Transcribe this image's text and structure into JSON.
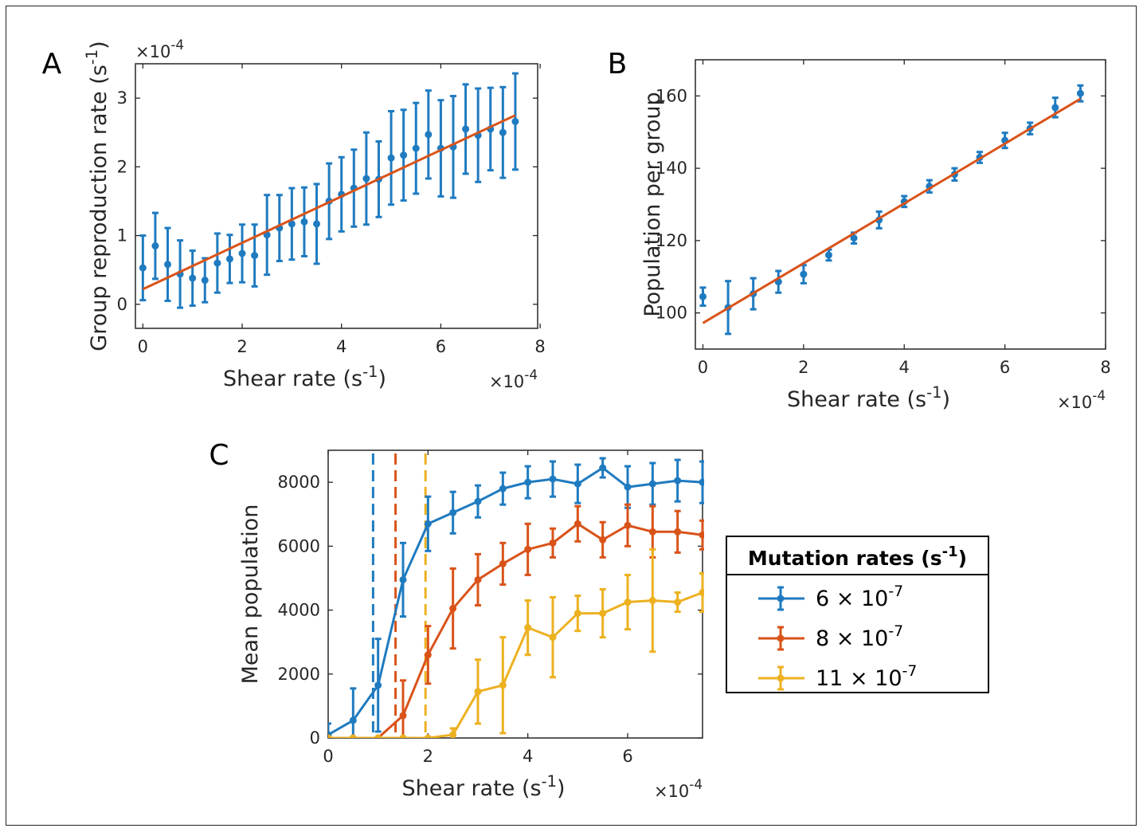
{
  "colors": {
    "blue": "#1f7bc0",
    "orange": "#d95319",
    "yellow": "#edb120",
    "axis": "#262626"
  },
  "chart_data": [
    {
      "panel": "A",
      "type": "scatter",
      "xlabel": "Shear rate (s",
      "xlabel_sup": "-1",
      "xlabel_close": ")",
      "ylabel": "Group reproduction rate (s",
      "ylabel_sup": "-1",
      "ylabel_close": ")",
      "x_multiplier": "×10",
      "x_multiplier_exp": "-4",
      "y_multiplier": "×10",
      "y_multiplier_exp": "-4",
      "xlim": [
        -0.15,
        7.95
      ],
      "ylim": [
        -0.35,
        3.5
      ],
      "xticks": [
        0,
        2,
        4,
        6,
        8
      ],
      "yticks": [
        0,
        1,
        2,
        3
      ],
      "grid": false,
      "series": [
        {
          "marker_color": "#1f7bc0",
          "x": [
            0,
            0.25,
            0.5,
            0.75,
            1.0,
            1.25,
            1.5,
            1.75,
            2.0,
            2.25,
            2.5,
            2.75,
            3.0,
            3.25,
            3.5,
            3.75,
            4.0,
            4.25,
            4.5,
            4.75,
            5.0,
            5.25,
            5.5,
            5.75,
            6.0,
            6.25,
            6.5,
            6.75,
            7.0,
            7.25,
            7.5
          ],
          "y": [
            0.53,
            0.85,
            0.58,
            0.44,
            0.38,
            0.35,
            0.6,
            0.66,
            0.74,
            0.71,
            1.01,
            1.11,
            1.17,
            1.2,
            1.17,
            1.5,
            1.6,
            1.69,
            1.83,
            1.82,
            2.13,
            2.17,
            2.27,
            2.47,
            2.27,
            2.29,
            2.55,
            2.46,
            2.55,
            2.5,
            2.66
          ],
          "err": [
            0.47,
            0.48,
            0.53,
            0.49,
            0.4,
            0.32,
            0.43,
            0.35,
            0.42,
            0.45,
            0.58,
            0.48,
            0.52,
            0.5,
            0.58,
            0.55,
            0.54,
            0.56,
            0.67,
            0.55,
            0.68,
            0.66,
            0.66,
            0.64,
            0.7,
            0.74,
            0.65,
            0.68,
            0.6,
            0.66,
            0.7
          ]
        }
      ],
      "fit_line": {
        "color": "#d95319",
        "x": [
          0,
          7.5
        ],
        "y": [
          0.22,
          2.75
        ]
      }
    },
    {
      "panel": "B",
      "type": "scatter",
      "xlabel": "Shear rate (s",
      "xlabel_sup": "-1",
      "xlabel_close": ")",
      "ylabel": "Population per group",
      "x_multiplier": "×10",
      "x_multiplier_exp": "-4",
      "xlim": [
        -0.15,
        8
      ],
      "ylim": [
        90,
        170
      ],
      "xticks": [
        0,
        2,
        4,
        6,
        8
      ],
      "yticks": [
        100,
        120,
        140,
        160
      ],
      "grid": false,
      "series": [
        {
          "marker_color": "#1f7bc0",
          "x": [
            0,
            0.5,
            1.0,
            1.5,
            2.0,
            2.5,
            3.0,
            3.5,
            4.0,
            4.5,
            5.0,
            5.5,
            6.0,
            6.5,
            7.0,
            7.5
          ],
          "y": [
            104.5,
            101.5,
            105.3,
            108.6,
            110.7,
            116.0,
            120.7,
            125.7,
            130.8,
            135.0,
            138.3,
            143.0,
            147.7,
            151.0,
            156.8,
            160.7
          ],
          "err": [
            2.5,
            7.3,
            4.3,
            3.0,
            2.5,
            1.5,
            1.5,
            2.3,
            1.5,
            1.7,
            1.7,
            1.5,
            2.1,
            1.6,
            2.7,
            2.2
          ]
        }
      ],
      "fit_line": {
        "color": "#d95319",
        "x": [
          0,
          7.5
        ],
        "y": [
          97.2,
          159.2
        ]
      }
    },
    {
      "panel": "C",
      "type": "line",
      "xlabel": "Shear rate (s",
      "xlabel_sup": "-1",
      "xlabel_close": ")",
      "ylabel": "Mean population",
      "x_multiplier": "×10",
      "x_multiplier_exp": "-4",
      "xlim": [
        0,
        7.5
      ],
      "ylim": [
        0,
        9000
      ],
      "xticks": [
        0,
        2,
        4,
        6
      ],
      "yticks": [
        0,
        2000,
        4000,
        6000,
        8000
      ],
      "grid": false,
      "legend": {
        "title": "Mutation rates (s",
        "title_sup": "-1",
        "title_close": ")",
        "placement": "right"
      },
      "series": [
        {
          "name": "6 × 10",
          "name_sup": "-7",
          "color": "#1f7bc0",
          "threshold": 0.9,
          "x": [
            0,
            0.5,
            1.0,
            1.5,
            2.0,
            2.5,
            3.0,
            3.5,
            4.0,
            4.5,
            5.0,
            5.5,
            6.0,
            6.5,
            7.0,
            7.5
          ],
          "y": [
            100,
            550,
            1650,
            4950,
            6700,
            7050,
            7400,
            7800,
            8000,
            8100,
            7950,
            8450,
            7850,
            7950,
            8050,
            8000
          ],
          "err": [
            350,
            1000,
            1450,
            1150,
            850,
            650,
            500,
            500,
            500,
            550,
            600,
            300,
            650,
            650,
            650,
            650
          ]
        },
        {
          "name": "8 × 10",
          "name_sup": "-7",
          "color": "#d95319",
          "threshold": 1.35,
          "x": [
            0,
            0.5,
            1.0,
            1.5,
            2.0,
            2.5,
            3.0,
            3.5,
            4.0,
            4.5,
            5.0,
            5.5,
            6.0,
            6.5,
            7.0,
            7.5
          ],
          "y": [
            0,
            0,
            0,
            700,
            2600,
            4050,
            4950,
            5450,
            5900,
            6100,
            6700,
            6200,
            6650,
            6450,
            6450,
            6350
          ],
          "err": [
            0,
            0,
            0,
            1100,
            900,
            1250,
            800,
            650,
            800,
            450,
            550,
            550,
            650,
            800,
            650,
            450
          ]
        },
        {
          "name": "11 × 10",
          "name_sup": "-7",
          "color": "#edb120",
          "threshold": 1.95,
          "x": [
            0,
            0.5,
            1.0,
            1.5,
            2.0,
            2.5,
            3.0,
            3.5,
            4.0,
            4.5,
            5.0,
            5.5,
            6.0,
            6.5,
            7.0,
            7.5
          ],
          "y": [
            0,
            0,
            0,
            0,
            0,
            100,
            1450,
            1650,
            3450,
            3150,
            3900,
            3900,
            4250,
            4300,
            4250,
            4550
          ],
          "err": [
            0,
            0,
            0,
            0,
            0,
            200,
            1000,
            1500,
            850,
            1250,
            550,
            750,
            850,
            1600,
            300,
            600
          ]
        }
      ]
    }
  ]
}
